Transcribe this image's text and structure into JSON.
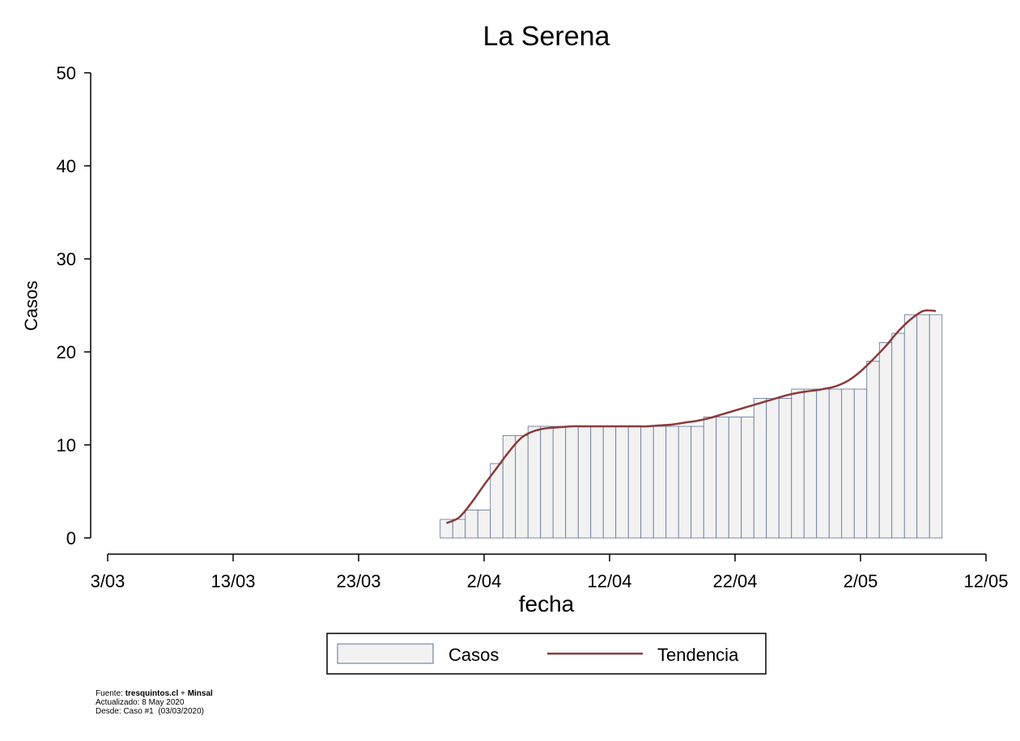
{
  "chart_data": {
    "type": "bar",
    "title": "La Serena",
    "xlabel": "fecha",
    "ylabel": "Casos",
    "ylim": [
      0,
      50
    ],
    "yticks": [
      0,
      10,
      20,
      30,
      40,
      50
    ],
    "xlim": [
      "2020-03-03",
      "2020-05-12"
    ],
    "xticks": [
      {
        "date": "2020-03-03",
        "label": "3/03"
      },
      {
        "date": "2020-03-13",
        "label": "13/03"
      },
      {
        "date": "2020-03-23",
        "label": "23/03"
      },
      {
        "date": "2020-04-02",
        "label": "2/04"
      },
      {
        "date": "2020-04-12",
        "label": "12/04"
      },
      {
        "date": "2020-04-22",
        "label": "22/04"
      },
      {
        "date": "2020-05-02",
        "label": "2/05"
      },
      {
        "date": "2020-05-12",
        "label": "12/05"
      }
    ],
    "grid": false,
    "legend_position": "bottom",
    "series": [
      {
        "name": "Casos",
        "type": "bar",
        "color": "#f2f2f2",
        "edge_color": "#5a6f94",
        "x": [
          "2020-03-30",
          "2020-03-31",
          "2020-04-01",
          "2020-04-02",
          "2020-04-03",
          "2020-04-04",
          "2020-04-05",
          "2020-04-06",
          "2020-04-07",
          "2020-04-08",
          "2020-04-09",
          "2020-04-10",
          "2020-04-11",
          "2020-04-12",
          "2020-04-13",
          "2020-04-14",
          "2020-04-15",
          "2020-04-16",
          "2020-04-17",
          "2020-04-18",
          "2020-04-19",
          "2020-04-20",
          "2020-04-21",
          "2020-04-22",
          "2020-04-23",
          "2020-04-24",
          "2020-04-25",
          "2020-04-26",
          "2020-04-27",
          "2020-04-28",
          "2020-04-29",
          "2020-04-30",
          "2020-05-01",
          "2020-05-02",
          "2020-05-03",
          "2020-05-04",
          "2020-05-05",
          "2020-05-06",
          "2020-05-07",
          "2020-05-08"
        ],
        "values": [
          2,
          2,
          3,
          3,
          8,
          11,
          11,
          12,
          12,
          12,
          12,
          12,
          12,
          12,
          12,
          12,
          12,
          12,
          12,
          12,
          12,
          13,
          13,
          13,
          13,
          15,
          15,
          15,
          16,
          16,
          16,
          16,
          16,
          16,
          19,
          21,
          22,
          24,
          24,
          24
        ]
      },
      {
        "name": "Tendencia",
        "type": "line",
        "color": "#8b3a3a",
        "x": [
          "2020-03-30",
          "2020-03-31",
          "2020-04-01",
          "2020-04-02",
          "2020-04-03",
          "2020-04-04",
          "2020-04-05",
          "2020-04-06",
          "2020-04-07",
          "2020-04-08",
          "2020-04-09",
          "2020-04-10",
          "2020-04-11",
          "2020-04-12",
          "2020-04-13",
          "2020-04-14",
          "2020-04-15",
          "2020-04-16",
          "2020-04-17",
          "2020-04-18",
          "2020-04-19",
          "2020-04-20",
          "2020-04-21",
          "2020-04-22",
          "2020-04-23",
          "2020-04-24",
          "2020-04-25",
          "2020-04-26",
          "2020-04-27",
          "2020-04-28",
          "2020-04-29",
          "2020-04-30",
          "2020-05-01",
          "2020-05-02",
          "2020-05-03",
          "2020-05-04",
          "2020-05-05",
          "2020-05-06",
          "2020-05-07",
          "2020-05-08"
        ],
        "values": [
          1.6,
          2.2,
          3.8,
          5.7,
          7.5,
          9.3,
          10.8,
          11.5,
          11.8,
          11.9,
          12.0,
          12.0,
          12.0,
          12.0,
          12.0,
          12.0,
          12.0,
          12.1,
          12.2,
          12.4,
          12.6,
          12.9,
          13.3,
          13.7,
          14.1,
          14.5,
          14.9,
          15.3,
          15.6,
          15.8,
          16.0,
          16.3,
          16.9,
          17.9,
          19.2,
          20.6,
          22.2,
          23.5,
          24.4,
          24.4
        ]
      }
    ]
  },
  "footer": {
    "source_prefix": "Fuente: ",
    "source_site": "tresquintos.cl",
    "source_sep": " + ",
    "source_org": "Minsal",
    "updated": "Actualizado: 8 May 2020",
    "since": "Desde: Caso #1  (03/03/2020)"
  }
}
